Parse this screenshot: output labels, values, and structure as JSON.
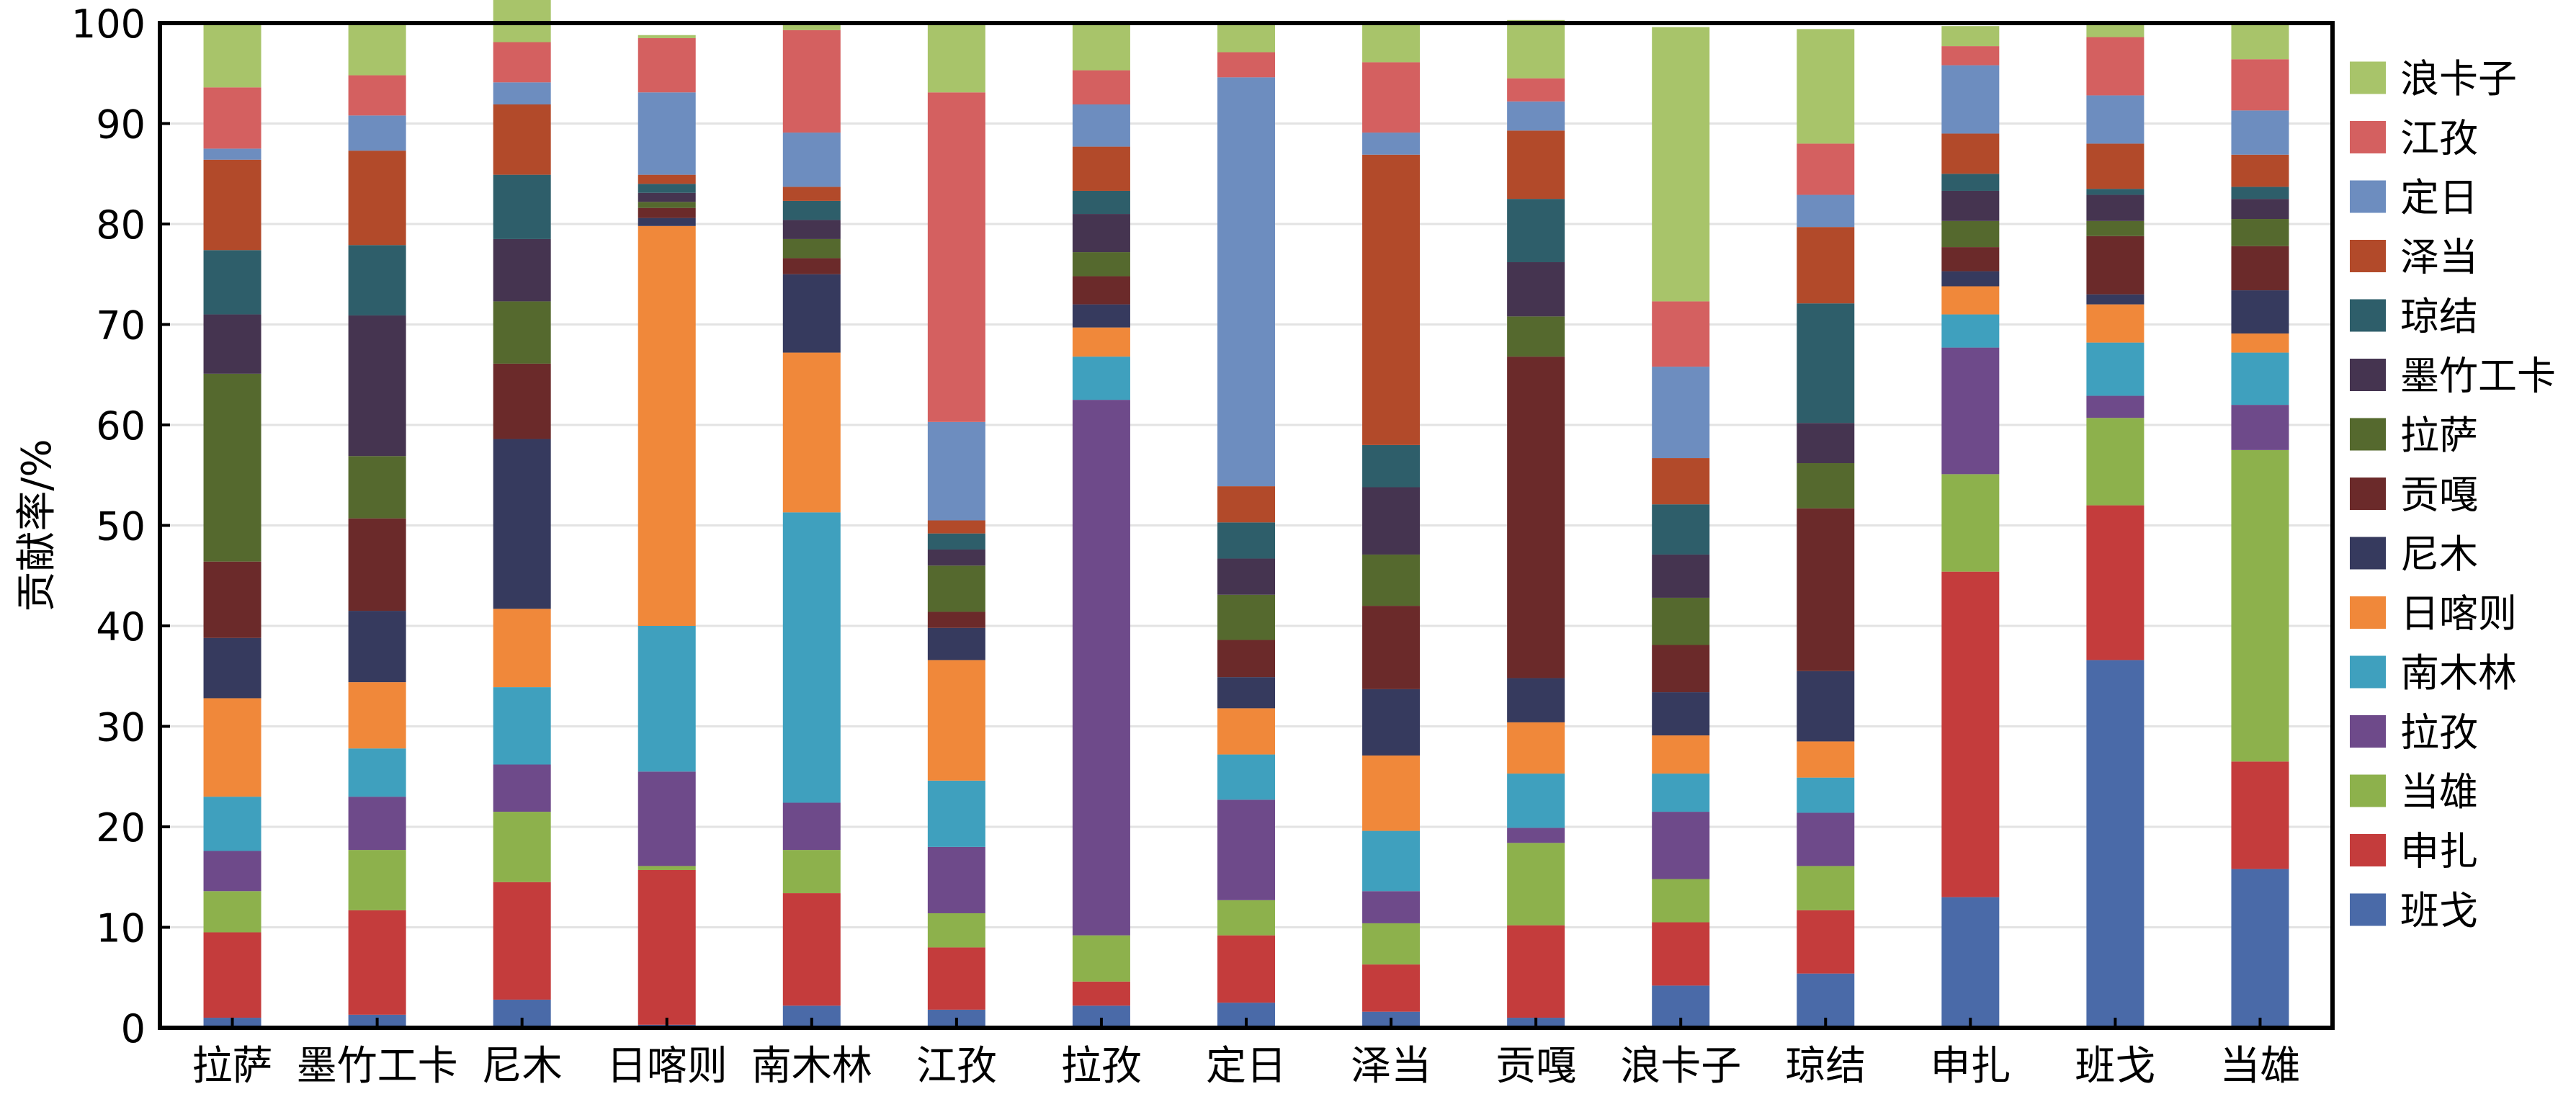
{
  "chart_data": {
    "type": "bar",
    "stacked": true,
    "title": "",
    "xlabel": "",
    "ylabel": "贡献率/%",
    "ylim": [
      0,
      100
    ],
    "yticks": [
      0,
      10,
      20,
      30,
      40,
      50,
      60,
      70,
      80,
      90,
      100
    ],
    "grid": true,
    "legend_position": "right",
    "categories": [
      "拉萨",
      "墨竹工卡",
      "尼木",
      "日喀则",
      "南木林",
      "江孜",
      "拉孜",
      "定日",
      "泽当",
      "贡嘎",
      "浪卡子",
      "琼结",
      "申扎",
      "班戈",
      "当雄"
    ],
    "series": [
      {
        "name": "班戈",
        "color": "#4A6AA8",
        "values": [
          1.0,
          1.3,
          2.8,
          0.3,
          2.2,
          1.8,
          2.2,
          2.5,
          1.6,
          1.0,
          4.2,
          5.4,
          13.0,
          36.6,
          15.8
        ]
      },
      {
        "name": "申扎",
        "color": "#C43C3C",
        "values": [
          8.5,
          10.4,
          11.7,
          15.4,
          11.2,
          6.2,
          2.4,
          6.7,
          4.7,
          9.2,
          6.3,
          6.3,
          32.4,
          15.4,
          10.7
        ]
      },
      {
        "name": "当雄",
        "color": "#8DB14C",
        "values": [
          4.1,
          6.0,
          7.0,
          0.4,
          4.3,
          3.4,
          4.6,
          3.5,
          4.1,
          8.2,
          4.3,
          4.4,
          9.7,
          8.7,
          31.0
        ]
      },
      {
        "name": "拉孜",
        "color": "#6E4A8A",
        "values": [
          4.0,
          5.3,
          4.7,
          9.4,
          4.7,
          6.6,
          53.3,
          10.0,
          3.2,
          1.5,
          6.7,
          5.3,
          12.6,
          2.2,
          4.5
        ]
      },
      {
        "name": "南木林",
        "color": "#3FA0BE",
        "values": [
          5.4,
          4.8,
          7.7,
          14.5,
          28.9,
          6.6,
          4.3,
          4.5,
          6.0,
          5.4,
          3.8,
          3.5,
          3.3,
          5.3,
          5.2
        ]
      },
      {
        "name": "日喀则",
        "color": "#F0883A",
        "values": [
          9.8,
          6.6,
          7.8,
          39.8,
          15.9,
          12.0,
          2.9,
          4.6,
          7.5,
          5.1,
          3.8,
          3.6,
          2.8,
          3.8,
          1.9
        ]
      },
      {
        "name": "尼木",
        "color": "#363A5E",
        "values": [
          6.0,
          7.1,
          16.9,
          0.8,
          7.8,
          3.2,
          2.3,
          3.1,
          6.6,
          4.4,
          4.3,
          7.0,
          1.5,
          1.0,
          4.3
        ]
      },
      {
        "name": "贡嘎",
        "color": "#6B2A2A",
        "values": [
          7.6,
          9.2,
          7.5,
          1.0,
          1.6,
          1.6,
          2.8,
          3.7,
          8.3,
          32.0,
          4.7,
          16.2,
          2.4,
          5.8,
          4.4
        ]
      },
      {
        "name": "拉萨",
        "color": "#55692E",
        "values": [
          18.7,
          6.2,
          6.2,
          0.6,
          1.9,
          4.6,
          2.4,
          4.5,
          5.1,
          4.0,
          4.7,
          4.5,
          2.6,
          1.5,
          2.7
        ]
      },
      {
        "name": "墨竹工卡",
        "color": "#453450",
        "values": [
          5.9,
          14.0,
          6.2,
          0.9,
          1.9,
          1.6,
          3.8,
          3.6,
          6.7,
          5.4,
          4.3,
          4.0,
          3.0,
          2.6,
          2.0
        ]
      },
      {
        "name": "琼结",
        "color": "#2E5E6A",
        "values": [
          6.4,
          7.0,
          6.4,
          0.9,
          1.9,
          1.6,
          2.3,
          3.6,
          4.2,
          6.3,
          5.0,
          11.9,
          1.7,
          0.6,
          1.2
        ]
      },
      {
        "name": "泽当",
        "color": "#B24A2A",
        "values": [
          9.0,
          9.4,
          7.0,
          0.9,
          1.4,
          1.3,
          4.4,
          3.6,
          28.9,
          6.8,
          4.6,
          7.6,
          4.0,
          4.5,
          3.2
        ]
      },
      {
        "name": "定日",
        "color": "#6D8DBF",
        "values": [
          1.1,
          3.5,
          2.2,
          8.2,
          5.4,
          9.8,
          4.2,
          40.7,
          2.2,
          2.9,
          9.1,
          3.2,
          6.8,
          4.8,
          4.4
        ]
      },
      {
        "name": "江孜",
        "color": "#D46060",
        "values": [
          6.1,
          4.0,
          4.0,
          5.4,
          10.2,
          32.8,
          3.4,
          2.5,
          7.0,
          2.3,
          6.5,
          5.1,
          1.9,
          5.8,
          5.1
        ]
      },
      {
        "name": "浪卡子",
        "color": "#A8C46A",
        "values": [
          6.4,
          5.1,
          4.4,
          0.3,
          0.5,
          6.8,
          4.7,
          2.8,
          3.8,
          5.8,
          27.3,
          11.4,
          2.0,
          1.2,
          3.4
        ]
      }
    ]
  }
}
